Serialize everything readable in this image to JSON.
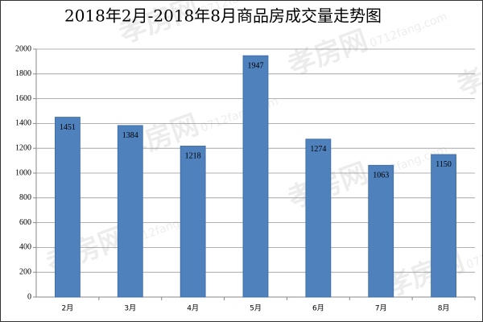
{
  "chart_data": {
    "type": "bar",
    "title": "2018年2月-2018年8月商品房成交量走势图",
    "categories": [
      "2月",
      "3月",
      "4月",
      "5月",
      "6月",
      "7月",
      "8月"
    ],
    "values": [
      1451,
      1384,
      1218,
      1947,
      1274,
      1063,
      1150
    ],
    "color": "#4f81bd",
    "ylim": [
      0,
      2000
    ],
    "yticks": [
      0,
      200,
      400,
      600,
      800,
      1000,
      1200,
      1400,
      1600,
      1800,
      2000
    ],
    "grid": true,
    "watermark": [
      "孝房网",
      "0712fang.com"
    ]
  }
}
